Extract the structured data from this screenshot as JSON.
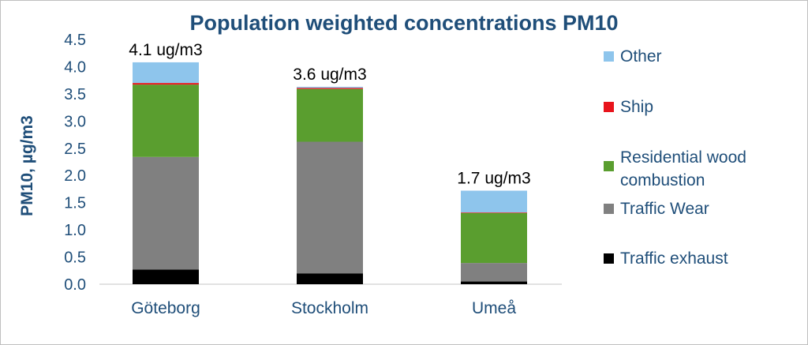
{
  "chart_data": {
    "type": "bar",
    "stacked": true,
    "title": "Population weighted concentrations PM10",
    "ylabel": "PM10, µg/m3",
    "xlabel": "",
    "ylim": [
      0,
      4.5
    ],
    "yticks": [
      "0.0",
      "0.5",
      "1.0",
      "1.5",
      "2.0",
      "2.5",
      "3.0",
      "3.5",
      "4.0",
      "4.5"
    ],
    "categories": [
      "Göteborg",
      "Stockholm",
      "Umeå"
    ],
    "totals_labels": [
      "4.1 ug/m3",
      "3.6 ug/m3",
      "1.7 ug/m3"
    ],
    "grid": false,
    "legend_position": "right",
    "series": [
      {
        "name": "Traffic exhaust",
        "color": "#000000",
        "values": [
          0.27,
          0.2,
          0.05
        ]
      },
      {
        "name": "Traffic Wear",
        "color": "#808080",
        "values": [
          2.07,
          2.42,
          0.34
        ]
      },
      {
        "name": "Residential wood combustion",
        "color": "#5a9e2f",
        "values": [
          1.33,
          0.97,
          0.92
        ]
      },
      {
        "name": "Ship",
        "color": "#e8141c",
        "values": [
          0.03,
          0.02,
          0.01
        ]
      },
      {
        "name": "Other",
        "color": "#8ec5ec",
        "values": [
          0.38,
          0.02,
          0.4
        ]
      }
    ]
  }
}
